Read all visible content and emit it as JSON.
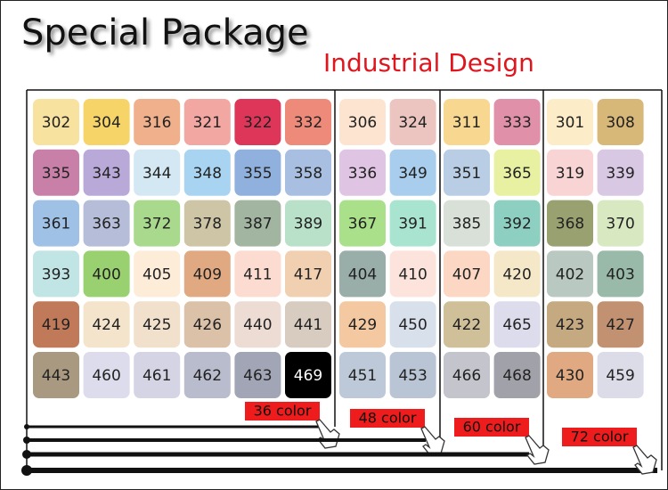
{
  "title": "Special Package",
  "subtitle": "Industrial Design",
  "groups": [
    {
      "label": "36 color",
      "rows": [
        [
          {
            "code": "302",
            "color": "#f8e2a0"
          },
          {
            "code": "304",
            "color": "#f6d468"
          },
          {
            "code": "316",
            "color": "#f1b08c"
          },
          {
            "code": "321",
            "color": "#f2a7a2"
          },
          {
            "code": "322",
            "color": "#dd3658"
          },
          {
            "code": "332",
            "color": "#ee8a7a"
          }
        ],
        [
          {
            "code": "335",
            "color": "#c880a8"
          },
          {
            "code": "343",
            "color": "#b9a9d8"
          },
          {
            "code": "344",
            "color": "#d4e8f4"
          },
          {
            "code": "348",
            "color": "#a9d4f1"
          },
          {
            "code": "355",
            "color": "#90b1dd"
          },
          {
            "code": "358",
            "color": "#a9bfe1"
          }
        ],
        [
          {
            "code": "361",
            "color": "#9fc1e6"
          },
          {
            "code": "363",
            "color": "#b5bdd8"
          },
          {
            "code": "372",
            "color": "#a9d98d"
          },
          {
            "code": "378",
            "color": "#cdc5a5"
          },
          {
            "code": "387",
            "color": "#a1b5a1"
          },
          {
            "code": "389",
            "color": "#b9e1c9"
          }
        ],
        [
          {
            "code": "393",
            "color": "#c1e5e5"
          },
          {
            "code": "400",
            "color": "#99d171"
          },
          {
            "code": "405",
            "color": "#fcecd8"
          },
          {
            "code": "409",
            "color": "#e0a981"
          },
          {
            "code": "411",
            "color": "#fcdcd0"
          },
          {
            "code": "417",
            "color": "#f0d0b1"
          }
        ],
        [
          {
            "code": "419",
            "color": "#c07959"
          },
          {
            "code": "424",
            "color": "#f4e4cc"
          },
          {
            "code": "425",
            "color": "#f0e0cc"
          },
          {
            "code": "426",
            "color": "#dcc1a9"
          },
          {
            "code": "440",
            "color": "#ecdcd4"
          },
          {
            "code": "441",
            "color": "#d8ccc0"
          }
        ],
        [
          {
            "code": "443",
            "color": "#a99981"
          },
          {
            "code": "460",
            "color": "#dcdcec"
          },
          {
            "code": "461",
            "color": "#d4d4e4"
          },
          {
            "code": "462",
            "color": "#b8bccc"
          },
          {
            "code": "463",
            "color": "#a1a5b5"
          },
          {
            "code": "469",
            "color": "#000000"
          }
        ]
      ]
    },
    {
      "label": "48 color",
      "rows": [
        [
          {
            "code": "306",
            "color": "#fce4d0"
          },
          {
            "code": "324",
            "color": "#ecc5c1"
          }
        ],
        [
          {
            "code": "336",
            "color": "#e0c4e4"
          },
          {
            "code": "349",
            "color": "#a9cdec"
          }
        ],
        [
          {
            "code": "367",
            "color": "#a9e089"
          },
          {
            "code": "391",
            "color": "#a9e4d1"
          }
        ],
        [
          {
            "code": "404",
            "color": "#99ada9"
          },
          {
            "code": "410",
            "color": "#fce4dc"
          }
        ],
        [
          {
            "code": "429",
            "color": "#f4c8a1"
          },
          {
            "code": "450",
            "color": "#d8e0ec"
          }
        ],
        [
          {
            "code": "451",
            "color": "#bdc9d8"
          },
          {
            "code": "453",
            "color": "#b9c5d4"
          }
        ]
      ]
    },
    {
      "label": "60 color",
      "rows": [
        [
          {
            "code": "311",
            "color": "#f8d891"
          },
          {
            "code": "333",
            "color": "#e091a9"
          }
        ],
        [
          {
            "code": "351",
            "color": "#b9cde4"
          },
          {
            "code": "365",
            "color": "#e8f0a1"
          }
        ],
        [
          {
            "code": "385",
            "color": "#d8e0d8"
          },
          {
            "code": "392",
            "color": "#8dd0c1"
          }
        ],
        [
          {
            "code": "407",
            "color": "#fcd8c4"
          },
          {
            "code": "420",
            "color": "#f4e8c8"
          }
        ],
        [
          {
            "code": "422",
            "color": "#d0c099"
          },
          {
            "code": "465",
            "color": "#dcdcec"
          }
        ],
        [
          {
            "code": "466",
            "color": "#c4c4cc"
          },
          {
            "code": "468",
            "color": "#a1a1a9"
          }
        ]
      ]
    },
    {
      "label": "72 color",
      "rows": [
        [
          {
            "code": "301",
            "color": "#fcecc8"
          },
          {
            "code": "308",
            "color": "#d8b879"
          }
        ],
        [
          {
            "code": "319",
            "color": "#f8d4d4"
          },
          {
            "code": "339",
            "color": "#d8c8e4"
          }
        ],
        [
          {
            "code": "368",
            "color": "#99a171"
          },
          {
            "code": "370",
            "color": "#d8e8c1"
          }
        ],
        [
          {
            "code": "402",
            "color": "#b9c9c1"
          },
          {
            "code": "403",
            "color": "#99b9a9"
          }
        ],
        [
          {
            "code": "423",
            "color": "#c5a981"
          },
          {
            "code": "427",
            "color": "#c19171"
          }
        ],
        [
          {
            "code": "430",
            "color": "#e0a981"
          },
          {
            "code": "459",
            "color": "#dcdce8"
          }
        ]
      ]
    }
  ]
}
